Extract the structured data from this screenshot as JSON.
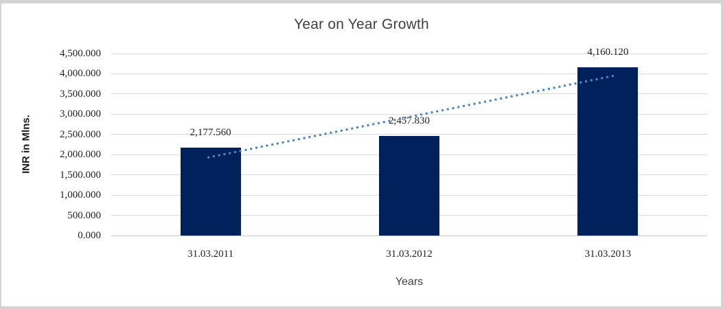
{
  "chart_data": {
    "type": "bar",
    "title": "Year on Year Growth",
    "categories": [
      "31.03.2011",
      "31.03.2012",
      "31.03.2013"
    ],
    "values": [
      2177.56,
      2457.83,
      4160.12
    ],
    "data_labels": [
      "2,177.560",
      "2,457.830",
      "4,160.120"
    ],
    "xlabel": "Years",
    "ylabel": "INR in Mlns.",
    "ylim": [
      0,
      4500
    ],
    "ytick_step": 500,
    "ytick_labels": [
      "0.000",
      "500.000",
      "1,000.000",
      "1,500.000",
      "2,000.000",
      "2,500.000",
      "3,000.000",
      "3,500.000",
      "4,000.000",
      "4,500.000"
    ],
    "grid": true,
    "legend": "none",
    "trendline": {
      "type": "linear",
      "style": "dotted"
    }
  },
  "colors": {
    "bar": "#01215d",
    "trendline": "#4e86c0",
    "gridline": "#d9d9d9",
    "axis_line": "#c3c3c3",
    "frame": "#d4d4d4",
    "title_text": "#404040",
    "axis_title_text": "#404040",
    "ylabel_text": "#1a1a1a",
    "label_text": "#1f1f1f",
    "background": "#ffffff"
  }
}
